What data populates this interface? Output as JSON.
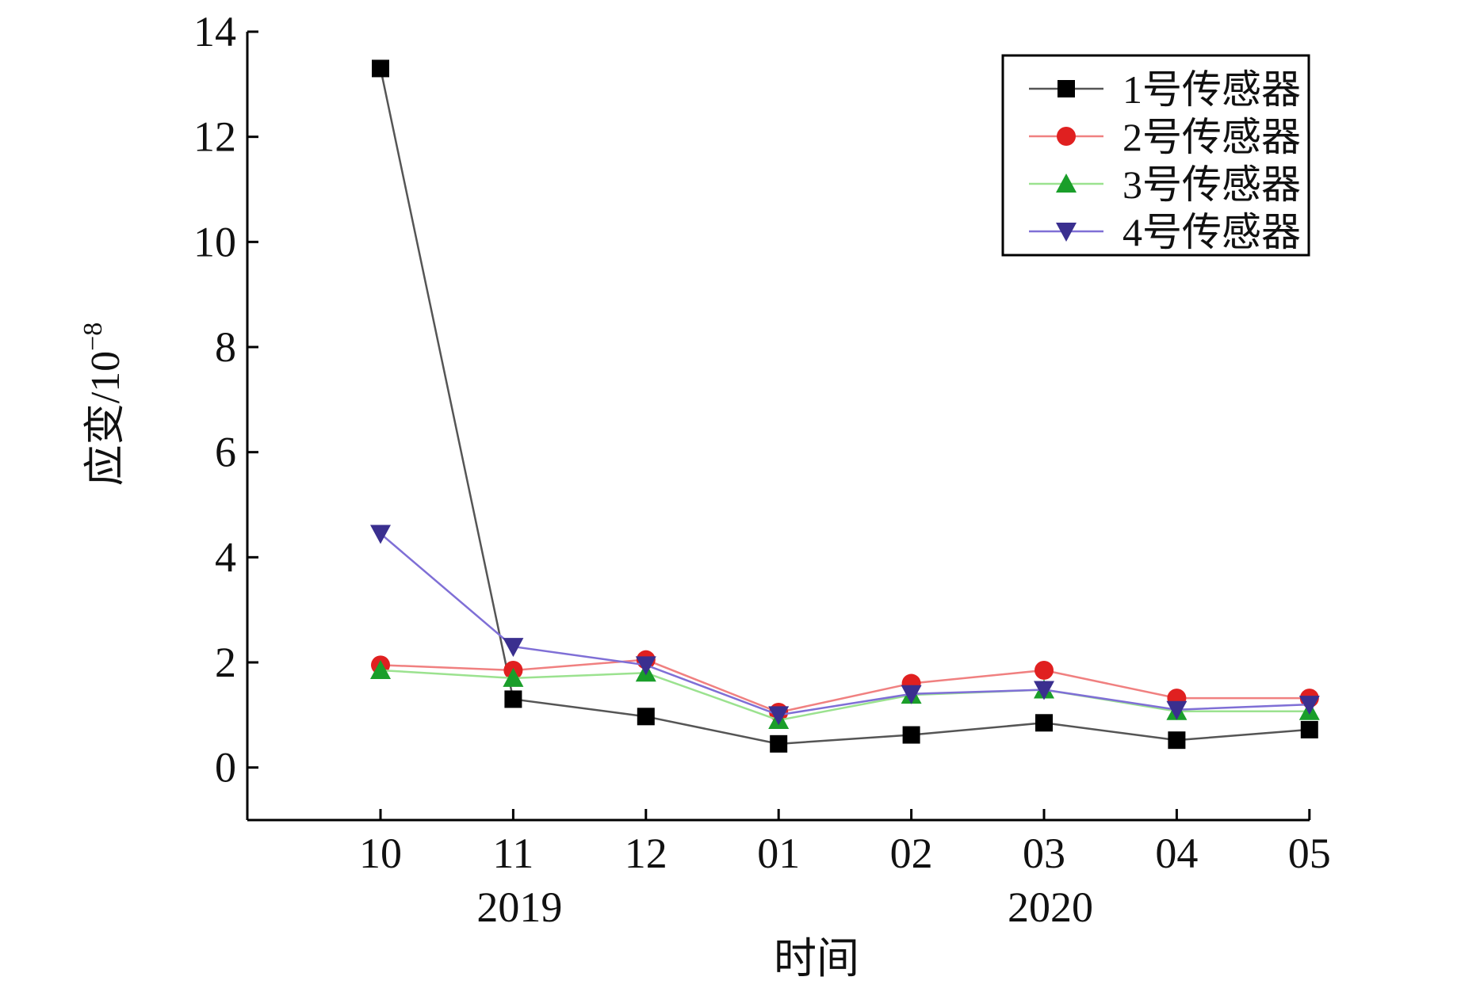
{
  "chart_data": {
    "type": "line",
    "categories": [
      "10",
      "11",
      "12",
      "01",
      "02",
      "03",
      "04",
      "05"
    ],
    "year_labels": [
      {
        "text": "2019",
        "at": 1
      },
      {
        "text": "2020",
        "at": 5
      }
    ],
    "xlabel": "时间",
    "ylabel": "应变/10",
    "ylabel_exponent": "−8",
    "ylim": [
      -1,
      14
    ],
    "yticks": [
      0,
      2,
      4,
      6,
      8,
      10,
      12,
      14
    ],
    "grid": false,
    "legend_position": "top-right",
    "series": [
      {
        "name": "1号传感器",
        "marker": "square",
        "color": "#555555",
        "marker_color": "#000000",
        "values": [
          13.3,
          1.3,
          0.97,
          0.45,
          0.62,
          0.85,
          0.52,
          0.72
        ]
      },
      {
        "name": "2号传感器",
        "marker": "circle",
        "color": "#f08080",
        "marker_color": "#e02020",
        "values": [
          1.95,
          1.85,
          2.05,
          1.05,
          1.6,
          1.85,
          1.32,
          1.32
        ]
      },
      {
        "name": "3号传感器",
        "marker": "triangle-up",
        "color": "#9be28f",
        "marker_color": "#1a9e2a",
        "values": [
          1.85,
          1.7,
          1.8,
          0.9,
          1.38,
          1.48,
          1.07,
          1.07
        ]
      },
      {
        "name": "4号传感器",
        "marker": "triangle-down",
        "color": "#7f6fd6",
        "marker_color": "#3a2f8f",
        "values": [
          4.45,
          2.3,
          1.95,
          1.0,
          1.4,
          1.48,
          1.1,
          1.2
        ]
      }
    ]
  }
}
